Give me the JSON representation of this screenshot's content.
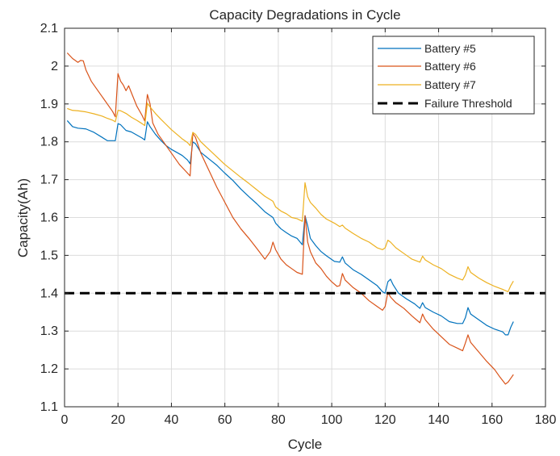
{
  "chart_data": {
    "type": "line",
    "title": "Capacity Degradations in Cycle",
    "xlabel": "Cycle",
    "ylabel": "Capacity(Ah)",
    "xlim": [
      0,
      180
    ],
    "ylim": [
      1.1,
      2.1
    ],
    "xticks": [
      0,
      20,
      40,
      60,
      80,
      100,
      120,
      140,
      160,
      180
    ],
    "yticks": [
      1.1,
      1.2,
      1.3,
      1.4,
      1.5,
      1.6,
      1.7,
      1.8,
      1.9,
      2,
      2.1
    ],
    "xtick_labels": [
      "0",
      "20",
      "40",
      "60",
      "80",
      "100",
      "120",
      "140",
      "160",
      "180"
    ],
    "ytick_labels": [
      "1.1",
      "1.2",
      "1.3",
      "1.4",
      "1.5",
      "1.6",
      "1.7",
      "1.8",
      "1.9",
      "2",
      "2.1"
    ],
    "grid": true,
    "legend_position": "top-right",
    "series": [
      {
        "name": "Battery #5",
        "color": "#0072BD",
        "style": "solid",
        "points": [
          [
            1,
            1.856
          ],
          [
            3,
            1.84
          ],
          [
            5,
            1.836
          ],
          [
            8,
            1.834
          ],
          [
            11,
            1.825
          ],
          [
            14,
            1.812
          ],
          [
            16,
            1.803
          ],
          [
            18,
            1.803
          ],
          [
            19,
            1.803
          ],
          [
            20,
            1.848
          ],
          [
            21,
            1.845
          ],
          [
            23,
            1.83
          ],
          [
            25,
            1.826
          ],
          [
            27,
            1.818
          ],
          [
            29,
            1.81
          ],
          [
            30,
            1.805
          ],
          [
            31,
            1.853
          ],
          [
            32,
            1.84
          ],
          [
            34,
            1.82
          ],
          [
            36,
            1.804
          ],
          [
            38,
            1.79
          ],
          [
            40,
            1.78
          ],
          [
            42,
            1.772
          ],
          [
            44,
            1.764
          ],
          [
            46,
            1.752
          ],
          [
            47,
            1.742
          ],
          [
            48,
            1.8
          ],
          [
            49,
            1.795
          ],
          [
            51,
            1.772
          ],
          [
            54,
            1.755
          ],
          [
            57,
            1.738
          ],
          [
            60,
            1.717
          ],
          [
            63,
            1.698
          ],
          [
            66,
            1.675
          ],
          [
            69,
            1.655
          ],
          [
            72,
            1.636
          ],
          [
            75,
            1.615
          ],
          [
            78,
            1.6
          ],
          [
            79,
            1.585
          ],
          [
            81,
            1.57
          ],
          [
            83,
            1.56
          ],
          [
            85,
            1.551
          ],
          [
            87,
            1.545
          ],
          [
            89,
            1.528
          ],
          [
            90,
            1.605
          ],
          [
            91,
            1.578
          ],
          [
            92,
            1.545
          ],
          [
            94,
            1.526
          ],
          [
            96,
            1.51
          ],
          [
            98,
            1.499
          ],
          [
            101,
            1.484
          ],
          [
            103,
            1.482
          ],
          [
            104,
            1.496
          ],
          [
            105,
            1.48
          ],
          [
            108,
            1.462
          ],
          [
            111,
            1.45
          ],
          [
            114,
            1.435
          ],
          [
            117,
            1.42
          ],
          [
            119,
            1.404
          ],
          [
            120,
            1.4
          ],
          [
            121,
            1.43
          ],
          [
            122,
            1.437
          ],
          [
            123,
            1.422
          ],
          [
            125,
            1.4
          ],
          [
            128,
            1.385
          ],
          [
            131,
            1.372
          ],
          [
            133,
            1.36
          ],
          [
            134,
            1.375
          ],
          [
            135,
            1.362
          ],
          [
            138,
            1.35
          ],
          [
            141,
            1.34
          ],
          [
            144,
            1.325
          ],
          [
            147,
            1.32
          ],
          [
            149,
            1.32
          ],
          [
            150,
            1.335
          ],
          [
            151,
            1.362
          ],
          [
            152,
            1.345
          ],
          [
            155,
            1.33
          ],
          [
            158,
            1.315
          ],
          [
            161,
            1.305
          ],
          [
            164,
            1.298
          ],
          [
            165,
            1.29
          ],
          [
            166,
            1.29
          ],
          [
            167,
            1.31
          ],
          [
            168,
            1.325
          ]
        ]
      },
      {
        "name": "Battery #6",
        "color": "#D95319",
        "style": "solid",
        "points": [
          [
            1,
            2.035
          ],
          [
            3,
            2.02
          ],
          [
            5,
            2.01
          ],
          [
            6,
            2.015
          ],
          [
            7,
            2.014
          ],
          [
            8,
            1.99
          ],
          [
            10,
            1.96
          ],
          [
            12,
            1.94
          ],
          [
            14,
            1.92
          ],
          [
            16,
            1.9
          ],
          [
            18,
            1.88
          ],
          [
            19,
            1.866
          ],
          [
            20,
            1.98
          ],
          [
            21,
            1.96
          ],
          [
            22,
            1.95
          ],
          [
            23,
            1.935
          ],
          [
            24,
            1.948
          ],
          [
            25,
            1.93
          ],
          [
            27,
            1.895
          ],
          [
            29,
            1.87
          ],
          [
            30,
            1.855
          ],
          [
            31,
            1.925
          ],
          [
            32,
            1.9
          ],
          [
            33,
            1.85
          ],
          [
            35,
            1.82
          ],
          [
            37,
            1.8
          ],
          [
            39,
            1.78
          ],
          [
            41,
            1.76
          ],
          [
            43,
            1.74
          ],
          [
            45,
            1.725
          ],
          [
            47,
            1.71
          ],
          [
            48,
            1.822
          ],
          [
            49,
            1.812
          ],
          [
            51,
            1.77
          ],
          [
            54,
            1.725
          ],
          [
            57,
            1.68
          ],
          [
            60,
            1.64
          ],
          [
            63,
            1.6
          ],
          [
            66,
            1.57
          ],
          [
            69,
            1.545
          ],
          [
            72,
            1.518
          ],
          [
            75,
            1.49
          ],
          [
            77,
            1.51
          ],
          [
            78,
            1.535
          ],
          [
            79,
            1.515
          ],
          [
            81,
            1.49
          ],
          [
            83,
            1.475
          ],
          [
            85,
            1.465
          ],
          [
            87,
            1.455
          ],
          [
            89,
            1.45
          ],
          [
            90,
            1.605
          ],
          [
            91,
            1.535
          ],
          [
            92,
            1.51
          ],
          [
            94,
            1.48
          ],
          [
            96,
            1.465
          ],
          [
            98,
            1.445
          ],
          [
            100,
            1.43
          ],
          [
            102,
            1.418
          ],
          [
            103,
            1.42
          ],
          [
            104,
            1.452
          ],
          [
            105,
            1.435
          ],
          [
            108,
            1.415
          ],
          [
            111,
            1.4
          ],
          [
            114,
            1.38
          ],
          [
            117,
            1.365
          ],
          [
            119,
            1.355
          ],
          [
            120,
            1.365
          ],
          [
            121,
            1.402
          ],
          [
            122,
            1.39
          ],
          [
            124,
            1.375
          ],
          [
            127,
            1.36
          ],
          [
            130,
            1.34
          ],
          [
            133,
            1.322
          ],
          [
            134,
            1.345
          ],
          [
            135,
            1.33
          ],
          [
            138,
            1.305
          ],
          [
            141,
            1.285
          ],
          [
            144,
            1.265
          ],
          [
            147,
            1.255
          ],
          [
            149,
            1.248
          ],
          [
            150,
            1.268
          ],
          [
            151,
            1.29
          ],
          [
            152,
            1.27
          ],
          [
            155,
            1.245
          ],
          [
            158,
            1.22
          ],
          [
            161,
            1.198
          ],
          [
            163,
            1.178
          ],
          [
            165,
            1.16
          ],
          [
            166,
            1.165
          ],
          [
            167,
            1.175
          ],
          [
            168,
            1.185
          ]
        ]
      },
      {
        "name": "Battery #7",
        "color": "#EDB120",
        "style": "solid",
        "points": [
          [
            1,
            1.888
          ],
          [
            3,
            1.883
          ],
          [
            5,
            1.882
          ],
          [
            8,
            1.879
          ],
          [
            11,
            1.874
          ],
          [
            14,
            1.868
          ],
          [
            16,
            1.862
          ],
          [
            18,
            1.857
          ],
          [
            19,
            1.853
          ],
          [
            20,
            1.883
          ],
          [
            21,
            1.882
          ],
          [
            23,
            1.875
          ],
          [
            25,
            1.865
          ],
          [
            27,
            1.857
          ],
          [
            29,
            1.848
          ],
          [
            30,
            1.843
          ],
          [
            31,
            1.902
          ],
          [
            32,
            1.892
          ],
          [
            34,
            1.875
          ],
          [
            36,
            1.86
          ],
          [
            38,
            1.846
          ],
          [
            40,
            1.832
          ],
          [
            42,
            1.82
          ],
          [
            44,
            1.808
          ],
          [
            46,
            1.798
          ],
          [
            47,
            1.79
          ],
          [
            48,
            1.825
          ],
          [
            49,
            1.82
          ],
          [
            51,
            1.8
          ],
          [
            54,
            1.78
          ],
          [
            57,
            1.76
          ],
          [
            60,
            1.74
          ],
          [
            63,
            1.723
          ],
          [
            66,
            1.706
          ],
          [
            69,
            1.69
          ],
          [
            72,
            1.673
          ],
          [
            75,
            1.656
          ],
          [
            78,
            1.643
          ],
          [
            79,
            1.628
          ],
          [
            81,
            1.617
          ],
          [
            83,
            1.61
          ],
          [
            85,
            1.6
          ],
          [
            87,
            1.597
          ],
          [
            89,
            1.59
          ],
          [
            90,
            1.692
          ],
          [
            91,
            1.655
          ],
          [
            92,
            1.64
          ],
          [
            94,
            1.625
          ],
          [
            96,
            1.608
          ],
          [
            98,
            1.596
          ],
          [
            101,
            1.585
          ],
          [
            103,
            1.576
          ],
          [
            104,
            1.58
          ],
          [
            105,
            1.572
          ],
          [
            108,
            1.558
          ],
          [
            111,
            1.545
          ],
          [
            114,
            1.535
          ],
          [
            117,
            1.52
          ],
          [
            119,
            1.515
          ],
          [
            120,
            1.52
          ],
          [
            121,
            1.54
          ],
          [
            122,
            1.535
          ],
          [
            124,
            1.52
          ],
          [
            127,
            1.505
          ],
          [
            130,
            1.49
          ],
          [
            133,
            1.482
          ],
          [
            134,
            1.498
          ],
          [
            135,
            1.488
          ],
          [
            138,
            1.475
          ],
          [
            141,
            1.465
          ],
          [
            144,
            1.45
          ],
          [
            147,
            1.44
          ],
          [
            149,
            1.435
          ],
          [
            150,
            1.448
          ],
          [
            151,
            1.47
          ],
          [
            152,
            1.455
          ],
          [
            155,
            1.44
          ],
          [
            158,
            1.428
          ],
          [
            161,
            1.418
          ],
          [
            164,
            1.41
          ],
          [
            165,
            1.407
          ],
          [
            166,
            1.404
          ],
          [
            167,
            1.42
          ],
          [
            168,
            1.432
          ]
        ]
      },
      {
        "name": "Failure Threshold",
        "color": "#000000",
        "style": "dashed",
        "points": [
          [
            0,
            1.4
          ],
          [
            180,
            1.4
          ]
        ]
      }
    ]
  }
}
